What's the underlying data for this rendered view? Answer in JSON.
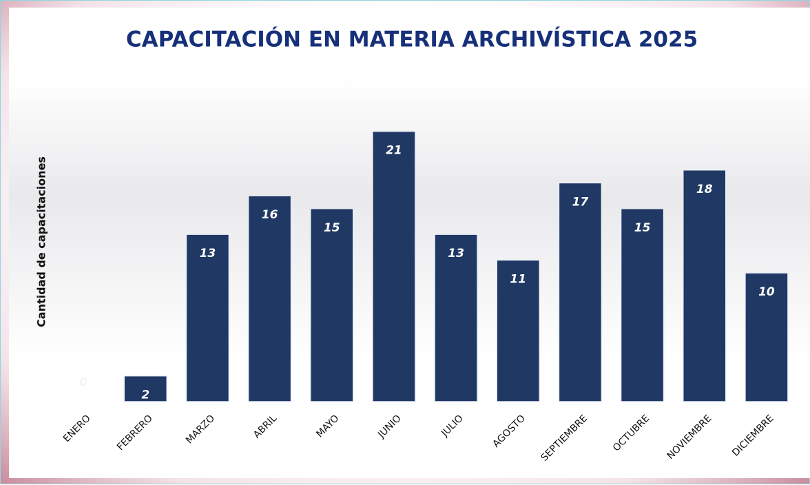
{
  "chart_data": {
    "type": "bar",
    "title": "CAPACITACIÓN EN MATERIA ARCHIVÍSTICA 2025",
    "y_label": "Cantidad de capacitaciones",
    "categories": [
      "ENERO",
      "FEBRERO",
      "MARZO",
      "ABRIL",
      "MAYO",
      "JUNIO",
      "JULIO",
      "AGOSTO",
      "SEPTIEMBRE",
      "OCTUBRE",
      "NOVIEMBRE",
      "DICIEMBRE"
    ],
    "values": [
      0,
      2,
      13,
      16,
      15,
      21,
      13,
      11,
      17,
      15,
      18,
      10
    ],
    "color": "#203864",
    "ylim": [
      0,
      25
    ]
  }
}
